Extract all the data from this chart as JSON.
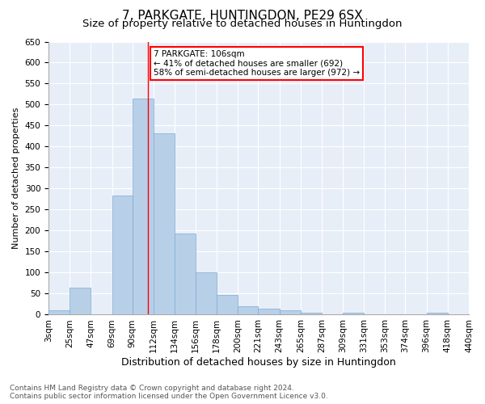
{
  "title": "7, PARKGATE, HUNTINGDON, PE29 6SX",
  "subtitle": "Size of property relative to detached houses in Huntingdon",
  "xlabel": "Distribution of detached houses by size in Huntingdon",
  "ylabel": "Number of detached properties",
  "bin_labels": [
    "3sqm",
    "25sqm",
    "47sqm",
    "69sqm",
    "90sqm",
    "112sqm",
    "134sqm",
    "156sqm",
    "178sqm",
    "200sqm",
    "221sqm",
    "243sqm",
    "265sqm",
    "287sqm",
    "309sqm",
    "331sqm",
    "353sqm",
    "374sqm",
    "396sqm",
    "418sqm",
    "440sqm"
  ],
  "bin_edges": [
    3,
    25,
    47,
    69,
    90,
    112,
    134,
    156,
    178,
    200,
    221,
    243,
    265,
    287,
    309,
    331,
    353,
    374,
    396,
    418,
    440
  ],
  "bar_heights": [
    10,
    65,
    0,
    283,
    515,
    432,
    193,
    100,
    47,
    20,
    15,
    10,
    5,
    0,
    5,
    0,
    0,
    0,
    5,
    0,
    0
  ],
  "bar_color": "#b8cfe8",
  "bar_edge_color": "#7aadd4",
  "property_line_x": 106,
  "property_line_color": "red",
  "annotation_text": "7 PARKGATE: 106sqm\n← 41% of detached houses are smaller (692)\n58% of semi-detached houses are larger (972) →",
  "annotation_box_color": "white",
  "annotation_box_edgecolor": "red",
  "ylim": [
    0,
    650
  ],
  "yticks": [
    0,
    50,
    100,
    150,
    200,
    250,
    300,
    350,
    400,
    450,
    500,
    550,
    600,
    650
  ],
  "plot_bg_color": "#e8eef8",
  "footer_line1": "Contains HM Land Registry data © Crown copyright and database right 2024.",
  "footer_line2": "Contains public sector information licensed under the Open Government Licence v3.0.",
  "title_fontsize": 11,
  "subtitle_fontsize": 9.5,
  "xlabel_fontsize": 9,
  "ylabel_fontsize": 8,
  "tick_fontsize": 7.5,
  "footer_fontsize": 6.5
}
